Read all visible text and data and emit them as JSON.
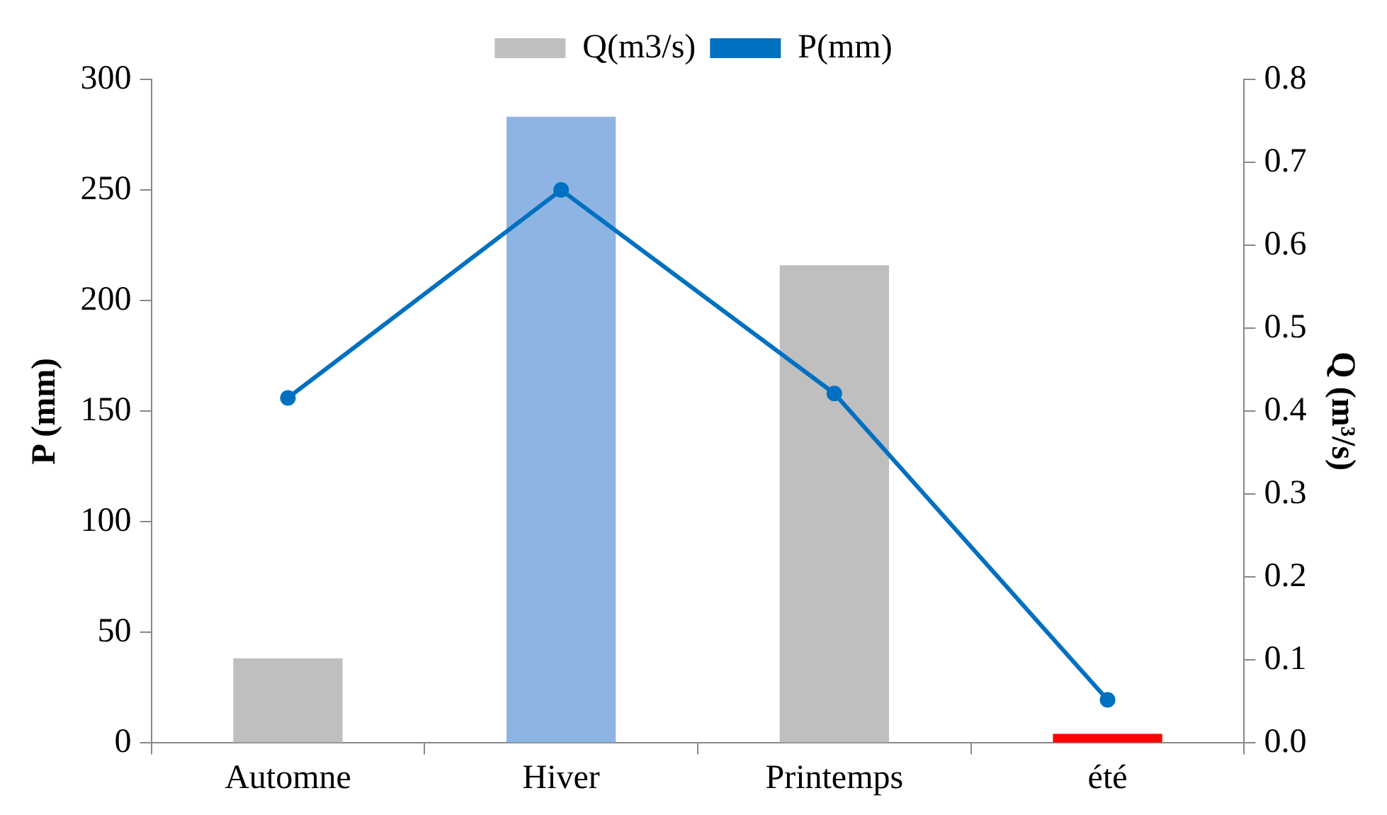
{
  "chart_data": {
    "type": "bar",
    "ylabel": "P (mm)",
    "y2label": "Q (m³/s)",
    "categories": [
      "Automne",
      "Hiver",
      "Printemps",
      "été"
    ],
    "series": [
      {
        "name": "Q(m3/s)",
        "axis": "y2",
        "colors": [
          "#bfbfbf",
          "#8eb4e3",
          "#bfbfbf",
          "#ff0000"
        ],
        "color": "#bfbfbf",
        "values": [
          0.102,
          0.755,
          0.576,
          0.011
        ]
      },
      {
        "name": "P(mm)",
        "type": "line",
        "axis": "y",
        "color": "#0070c0",
        "marker": "circle",
        "values": [
          156,
          250,
          158,
          19.5
        ]
      }
    ],
    "ylim": [
      0,
      300
    ],
    "yticks": [
      0,
      50,
      100,
      150,
      200,
      250,
      300
    ],
    "y2lim": [
      0,
      0.8
    ],
    "y2ticks": [
      {
        "value": 0,
        "label": "0.0"
      },
      0.1,
      0.2,
      0.3,
      0.4,
      0.5,
      0.6,
      0.7,
      0.8
    ],
    "legend": "top",
    "grid": false
  }
}
